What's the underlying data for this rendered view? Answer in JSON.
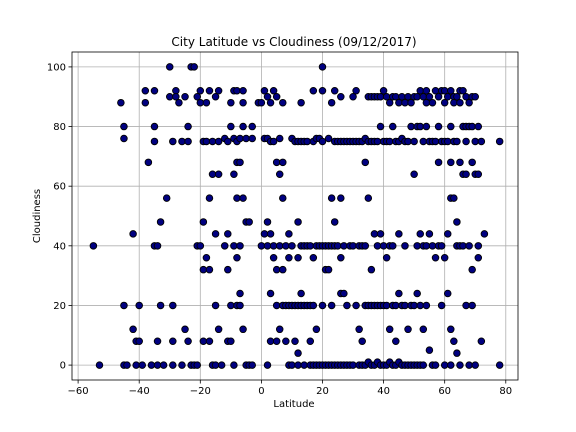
{
  "chart_data": {
    "type": "scatter",
    "title": "City Latitude vs Cloudiness (09/12/2017)",
    "xlabel": "Latitude",
    "ylabel": "Cloudiness",
    "xlim": [
      -62,
      84
    ],
    "ylim": [
      -5,
      105
    ],
    "xticks": [
      -60,
      -40,
      -20,
      0,
      20,
      40,
      60,
      80
    ],
    "yticks": [
      0,
      20,
      40,
      60,
      80,
      100
    ],
    "grid": true,
    "marker_fill": "#000080",
    "marker_edge": "#000000",
    "points": [
      [
        -55,
        40
      ],
      [
        -53,
        0
      ],
      [
        -46,
        88
      ],
      [
        -45,
        80
      ],
      [
        -45,
        76
      ],
      [
        -45,
        20
      ],
      [
        -45,
        0
      ],
      [
        -44,
        0
      ],
      [
        -42,
        44
      ],
      [
        -42,
        12
      ],
      [
        -41,
        8
      ],
      [
        -41,
        0
      ],
      [
        -40,
        20
      ],
      [
        -40,
        8
      ],
      [
        -39,
        0
      ],
      [
        -38,
        92
      ],
      [
        -38,
        88
      ],
      [
        -37,
        68
      ],
      [
        -36,
        0
      ],
      [
        -35,
        92
      ],
      [
        -35,
        80
      ],
      [
        -35,
        75
      ],
      [
        -35,
        40
      ],
      [
        -34,
        40
      ],
      [
        -34,
        8
      ],
      [
        -34,
        0
      ],
      [
        -33,
        20
      ],
      [
        -33,
        48
      ],
      [
        -32,
        0
      ],
      [
        -31,
        56
      ],
      [
        -30,
        100
      ],
      [
        -30,
        90
      ],
      [
        -29,
        75
      ],
      [
        -29,
        20
      ],
      [
        -29,
        8
      ],
      [
        -29,
        0
      ],
      [
        -28,
        92
      ],
      [
        -28,
        90
      ],
      [
        -27,
        88
      ],
      [
        -26,
        75
      ],
      [
        -26,
        0
      ],
      [
        -25,
        90
      ],
      [
        -25,
        12
      ],
      [
        -24,
        80
      ],
      [
        -24,
        75
      ],
      [
        -24,
        8
      ],
      [
        -23,
        100
      ],
      [
        -23,
        0
      ],
      [
        -22,
        100
      ],
      [
        -22,
        0
      ],
      [
        -21,
        90
      ],
      [
        -21,
        40
      ],
      [
        -21,
        0
      ],
      [
        -20,
        92
      ],
      [
        -20,
        88
      ],
      [
        -20,
        40
      ],
      [
        -19,
        75
      ],
      [
        -19,
        48
      ],
      [
        -19,
        32
      ],
      [
        -19,
        8
      ],
      [
        -18,
        88
      ],
      [
        -18,
        75
      ],
      [
        -18,
        36
      ],
      [
        -17,
        92
      ],
      [
        -17,
        56
      ],
      [
        -17,
        32
      ],
      [
        -17,
        8
      ],
      [
        -16,
        75
      ],
      [
        -16,
        64
      ],
      [
        -16,
        0
      ],
      [
        -15,
        90
      ],
      [
        -15,
        44
      ],
      [
        -15,
        20
      ],
      [
        -15,
        0
      ],
      [
        -14,
        92
      ],
      [
        -14,
        75
      ],
      [
        -14,
        64
      ],
      [
        -14,
        12
      ],
      [
        -13,
        0
      ],
      [
        -12,
        76
      ],
      [
        -12,
        40
      ],
      [
        -11,
        75
      ],
      [
        -11,
        44
      ],
      [
        -11,
        32
      ],
      [
        -11,
        8
      ],
      [
        -10,
        88
      ],
      [
        -10,
        80
      ],
      [
        -10,
        20
      ],
      [
        -10,
        8
      ],
      [
        -9,
        92
      ],
      [
        -9,
        76
      ],
      [
        -9,
        64
      ],
      [
        -9,
        40
      ],
      [
        -9,
        0
      ],
      [
        -8,
        92
      ],
      [
        -8,
        75
      ],
      [
        -8,
        68
      ],
      [
        -8,
        56
      ],
      [
        -8,
        36
      ],
      [
        -8,
        20
      ],
      [
        -7,
        76
      ],
      [
        -7,
        68
      ],
      [
        -7,
        40
      ],
      [
        -7,
        24
      ],
      [
        -7,
        20
      ],
      [
        -6,
        92
      ],
      [
        -6,
        88
      ],
      [
        -6,
        80
      ],
      [
        -6,
        56
      ],
      [
        -6,
        12
      ],
      [
        -5,
        76
      ],
      [
        -5,
        48
      ],
      [
        -5,
        0
      ],
      [
        -4,
        48
      ],
      [
        -4,
        0
      ],
      [
        -3,
        80
      ],
      [
        -3,
        76
      ],
      [
        -3,
        0
      ],
      [
        -1,
        88
      ],
      [
        0,
        88
      ],
      [
        0,
        40
      ],
      [
        1,
        92
      ],
      [
        1,
        76
      ],
      [
        1,
        44
      ],
      [
        2,
        90
      ],
      [
        2,
        76
      ],
      [
        2,
        48
      ],
      [
        2,
        40
      ],
      [
        2,
        0
      ],
      [
        3,
        88
      ],
      [
        3,
        75
      ],
      [
        3,
        44
      ],
      [
        3,
        24
      ],
      [
        3,
        8
      ],
      [
        4,
        92
      ],
      [
        4,
        75
      ],
      [
        4,
        40
      ],
      [
        4,
        36
      ],
      [
        5,
        90
      ],
      [
        5,
        68
      ],
      [
        5,
        32
      ],
      [
        5,
        20
      ],
      [
        5,
        8
      ],
      [
        6,
        76
      ],
      [
        6,
        64
      ],
      [
        6,
        40
      ],
      [
        6,
        12
      ],
      [
        7,
        88
      ],
      [
        7,
        68
      ],
      [
        7,
        56
      ],
      [
        7,
        32
      ],
      [
        7,
        20
      ],
      [
        8,
        40
      ],
      [
        8,
        20
      ],
      [
        8,
        8
      ],
      [
        9,
        44
      ],
      [
        9,
        36
      ],
      [
        9,
        20
      ],
      [
        9,
        0
      ],
      [
        10,
        76
      ],
      [
        10,
        40
      ],
      [
        10,
        20
      ],
      [
        10,
        0
      ],
      [
        11,
        75
      ],
      [
        11,
        20
      ],
      [
        11,
        8
      ],
      [
        12,
        75
      ],
      [
        12,
        48
      ],
      [
        12,
        36
      ],
      [
        12,
        20
      ],
      [
        12,
        4
      ],
      [
        12,
        0
      ],
      [
        13,
        88
      ],
      [
        13,
        75
      ],
      [
        13,
        40
      ],
      [
        13,
        24
      ],
      [
        13,
        20
      ],
      [
        14,
        75
      ],
      [
        14,
        40
      ],
      [
        14,
        20
      ],
      [
        14,
        0
      ],
      [
        15,
        75
      ],
      [
        15,
        40
      ],
      [
        15,
        20
      ],
      [
        16,
        40
      ],
      [
        16,
        20
      ],
      [
        16,
        8
      ],
      [
        16,
        0
      ],
      [
        17,
        92
      ],
      [
        17,
        75
      ],
      [
        17,
        36
      ],
      [
        17,
        20
      ],
      [
        17,
        0
      ],
      [
        18,
        76
      ],
      [
        18,
        40
      ],
      [
        18,
        12
      ],
      [
        18,
        0
      ],
      [
        19,
        76
      ],
      [
        19,
        40
      ],
      [
        19,
        0
      ],
      [
        20,
        100
      ],
      [
        20,
        92
      ],
      [
        20,
        75
      ],
      [
        20,
        40
      ],
      [
        20,
        20
      ],
      [
        20,
        0
      ],
      [
        21,
        40
      ],
      [
        21,
        32
      ],
      [
        21,
        0
      ],
      [
        22,
        76
      ],
      [
        22,
        40
      ],
      [
        22,
        32
      ],
      [
        22,
        0
      ],
      [
        23,
        88
      ],
      [
        23,
        56
      ],
      [
        23,
        40
      ],
      [
        23,
        20
      ],
      [
        23,
        0
      ],
      [
        24,
        92
      ],
      [
        24,
        75
      ],
      [
        24,
        48
      ],
      [
        24,
        40
      ],
      [
        24,
        0
      ],
      [
        25,
        75
      ],
      [
        25,
        40
      ],
      [
        25,
        0
      ],
      [
        26,
        90
      ],
      [
        26,
        75
      ],
      [
        26,
        56
      ],
      [
        26,
        36
      ],
      [
        26,
        24
      ],
      [
        26,
        0
      ],
      [
        27,
        75
      ],
      [
        27,
        40
      ],
      [
        27,
        24
      ],
      [
        27,
        0
      ],
      [
        28,
        75
      ],
      [
        28,
        20
      ],
      [
        28,
        0
      ],
      [
        29,
        75
      ],
      [
        29,
        40
      ],
      [
        29,
        0
      ],
      [
        30,
        90
      ],
      [
        30,
        75
      ],
      [
        30,
        40
      ],
      [
        30,
        0
      ],
      [
        31,
        92
      ],
      [
        31,
        75
      ],
      [
        31,
        20
      ],
      [
        32,
        75
      ],
      [
        32,
        40
      ],
      [
        32,
        12
      ],
      [
        32,
        0
      ],
      [
        33,
        75
      ],
      [
        33,
        40
      ],
      [
        33,
        8
      ],
      [
        33,
        0
      ],
      [
        34,
        76
      ],
      [
        34,
        68
      ],
      [
        34,
        40
      ],
      [
        34,
        20
      ],
      [
        34,
        0
      ],
      [
        35,
        90
      ],
      [
        35,
        75
      ],
      [
        35,
        56
      ],
      [
        35,
        20
      ],
      [
        35,
        1
      ],
      [
        36,
        90
      ],
      [
        36,
        75
      ],
      [
        36,
        32
      ],
      [
        36,
        20
      ],
      [
        36,
        0
      ],
      [
        37,
        90
      ],
      [
        37,
        75
      ],
      [
        37,
        44
      ],
      [
        37,
        20
      ],
      [
        37,
        0
      ],
      [
        38,
        90
      ],
      [
        38,
        75
      ],
      [
        38,
        40
      ],
      [
        38,
        20
      ],
      [
        38,
        1
      ],
      [
        39,
        90
      ],
      [
        39,
        80
      ],
      [
        39,
        44
      ],
      [
        39,
        20
      ],
      [
        39,
        0
      ],
      [
        40,
        92
      ],
      [
        40,
        75
      ],
      [
        40,
        40
      ],
      [
        40,
        20
      ],
      [
        40,
        0
      ],
      [
        41,
        90
      ],
      [
        41,
        75
      ],
      [
        41,
        36
      ],
      [
        41,
        20
      ],
      [
        41,
        0
      ],
      [
        42,
        88
      ],
      [
        42,
        75
      ],
      [
        42,
        40
      ],
      [
        42,
        12
      ],
      [
        42,
        1
      ],
      [
        43,
        90
      ],
      [
        43,
        80
      ],
      [
        43,
        40
      ],
      [
        43,
        20
      ],
      [
        43,
        0
      ],
      [
        44,
        90
      ],
      [
        44,
        75
      ],
      [
        44,
        20
      ],
      [
        44,
        8
      ],
      [
        44,
        0
      ],
      [
        45,
        88
      ],
      [
        45,
        75
      ],
      [
        45,
        44
      ],
      [
        45,
        24
      ],
      [
        45,
        1
      ],
      [
        46,
        90
      ],
      [
        46,
        76
      ],
      [
        46,
        20
      ],
      [
        46,
        0
      ],
      [
        47,
        88
      ],
      [
        47,
        75
      ],
      [
        47,
        40
      ],
      [
        47,
        20
      ],
      [
        47,
        0
      ],
      [
        48,
        90
      ],
      [
        48,
        75
      ],
      [
        48,
        12
      ],
      [
        48,
        0
      ],
      [
        49,
        88
      ],
      [
        49,
        80
      ],
      [
        49,
        20
      ],
      [
        49,
        0
      ],
      [
        50,
        90
      ],
      [
        50,
        75
      ],
      [
        50,
        64
      ],
      [
        50,
        20
      ],
      [
        50,
        0
      ],
      [
        51,
        90
      ],
      [
        51,
        80
      ],
      [
        51,
        40
      ],
      [
        51,
        24
      ],
      [
        51,
        0
      ],
      [
        52,
        92
      ],
      [
        52,
        80
      ],
      [
        52,
        44
      ],
      [
        52,
        20
      ],
      [
        52,
        0
      ],
      [
        53,
        90
      ],
      [
        53,
        75
      ],
      [
        53,
        40
      ],
      [
        53,
        12
      ],
      [
        53,
        0
      ],
      [
        54,
        92
      ],
      [
        54,
        88
      ],
      [
        54,
        80
      ],
      [
        54,
        40
      ],
      [
        54,
        20
      ],
      [
        55,
        90
      ],
      [
        55,
        75
      ],
      [
        55,
        44
      ],
      [
        55,
        5
      ],
      [
        56,
        88
      ],
      [
        56,
        75
      ],
      [
        56,
        40
      ],
      [
        56,
        0
      ],
      [
        57,
        92
      ],
      [
        57,
        75
      ],
      [
        57,
        36
      ],
      [
        57,
        0
      ],
      [
        58,
        90
      ],
      [
        58,
        80
      ],
      [
        58,
        68
      ],
      [
        58,
        40
      ],
      [
        59,
        92
      ],
      [
        59,
        75
      ],
      [
        59,
        40
      ],
      [
        59,
        20
      ],
      [
        60,
        92
      ],
      [
        60,
        88
      ],
      [
        60,
        75
      ],
      [
        60,
        36
      ],
      [
        60,
        0
      ],
      [
        61,
        90
      ],
      [
        61,
        75
      ],
      [
        61,
        44
      ],
      [
        61,
        24
      ],
      [
        62,
        92
      ],
      [
        62,
        80
      ],
      [
        62,
        68
      ],
      [
        62,
        56
      ],
      [
        62,
        12
      ],
      [
        62,
        0
      ],
      [
        63,
        90
      ],
      [
        63,
        88
      ],
      [
        63,
        75
      ],
      [
        63,
        56
      ],
      [
        63,
        8
      ],
      [
        64,
        90
      ],
      [
        64,
        75
      ],
      [
        64,
        48
      ],
      [
        64,
        40
      ],
      [
        64,
        4
      ],
      [
        65,
        92
      ],
      [
        65,
        88
      ],
      [
        65,
        68
      ],
      [
        65,
        40
      ],
      [
        65,
        0
      ],
      [
        66,
        92
      ],
      [
        66,
        80
      ],
      [
        66,
        64
      ],
      [
        66,
        40
      ],
      [
        67,
        90
      ],
      [
        67,
        80
      ],
      [
        67,
        75
      ],
      [
        67,
        64
      ],
      [
        67,
        20
      ],
      [
        68,
        88
      ],
      [
        68,
        80
      ],
      [
        68,
        40
      ],
      [
        68,
        0
      ],
      [
        69,
        90
      ],
      [
        69,
        80
      ],
      [
        69,
        68
      ],
      [
        69,
        32
      ],
      [
        69,
        20
      ],
      [
        70,
        90
      ],
      [
        70,
        75
      ],
      [
        70,
        64
      ],
      [
        70,
        0
      ],
      [
        71,
        80
      ],
      [
        71,
        64
      ],
      [
        71,
        40
      ],
      [
        71,
        36
      ],
      [
        72,
        75
      ],
      [
        72,
        8
      ],
      [
        73,
        44
      ],
      [
        78,
        75
      ],
      [
        78,
        0
      ]
    ]
  }
}
